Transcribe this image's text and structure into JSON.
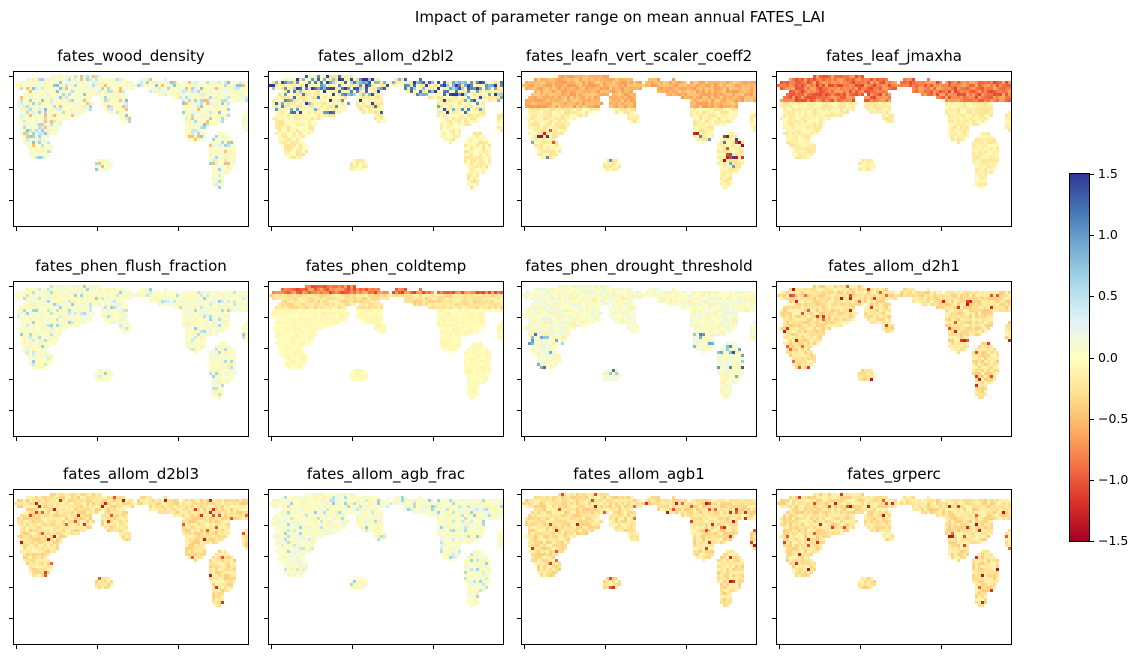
{
  "chart_data": {
    "type": "heatmap",
    "title": "Impact of parameter range on mean annual FATES_LAI",
    "panels": [
      {
        "title": "fates_wood_density",
        "pattern": "mixed_blue"
      },
      {
        "title": "fates_allom_d2bl2",
        "pattern": "blue_north"
      },
      {
        "title": "fates_leafn_vert_scaler_coeff2",
        "pattern": "orange_red_tropics"
      },
      {
        "title": "fates_leaf_jmaxha",
        "pattern": "orange_north"
      },
      {
        "title": "fates_phen_flush_fraction",
        "pattern": "light_blue_mixed"
      },
      {
        "title": "fates_phen_coldtemp",
        "pattern": "orange_top_edge"
      },
      {
        "title": "fates_phen_drought_threshold",
        "pattern": "blue_tropics"
      },
      {
        "title": "fates_allom_d2h1",
        "pattern": "orange_mild"
      },
      {
        "title": "fates_allom_d2bl3",
        "pattern": "orange_mild"
      },
      {
        "title": "fates_allom_agb_frac",
        "pattern": "light_blue_mixed"
      },
      {
        "title": "fates_allom_agb1",
        "pattern": "orange_mild"
      },
      {
        "title": "fates_grperc",
        "pattern": "orange_mild"
      }
    ],
    "colorbar": {
      "colormap": "RdYlBu",
      "vmin": -1.5,
      "vmax": 1.5,
      "ticks": [
        "1.5",
        "1.0",
        "0.5",
        "0.0",
        "−0.5",
        "−1.0",
        "−1.5"
      ]
    },
    "y_ticks_per_panel": 5,
    "x_ticks_per_panel": 3
  }
}
